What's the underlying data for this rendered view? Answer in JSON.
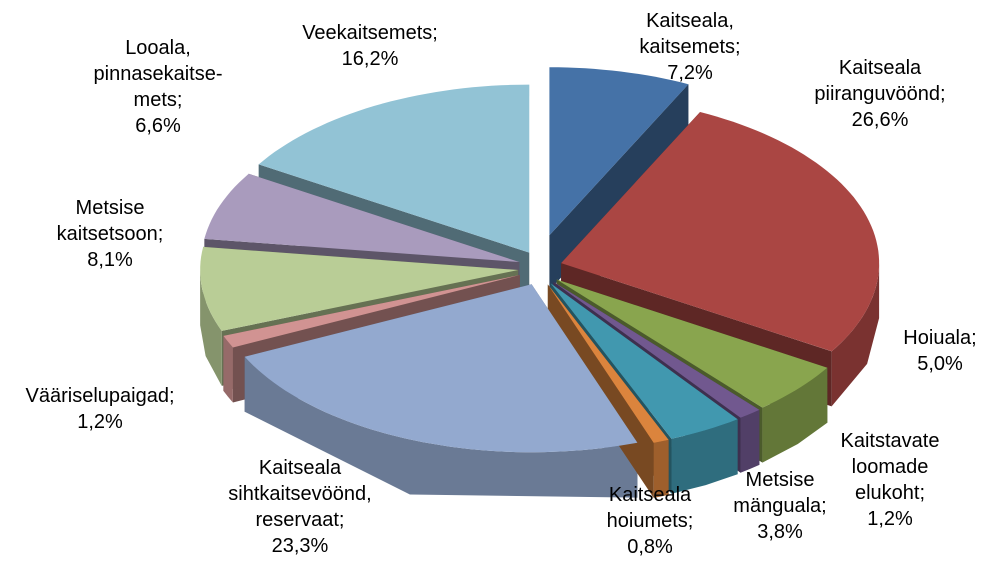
{
  "chart_data": {
    "type": "pie",
    "categories": [
      "Kaitseala,\nkaitsemets;",
      "Kaitseala\npiiranguvöönd;",
      "Hoiuala;",
      "Kaitstavate\nloomade\nelukoht;",
      "Metsise\nmänguala;",
      "Kaitseala\nhoiumets;",
      "Kaitseala\nsihtkaitsevöönd,\nreservaat;",
      "Vääriselupaigad;",
      "Metsise\nkaitsetsoon;",
      "Looala,\npinnasekaitse-\nmets;",
      "Veekaitsemets;"
    ],
    "values": [
      7.2,
      26.6,
      5.0,
      1.2,
      3.8,
      0.8,
      23.3,
      1.2,
      8.1,
      6.6,
      16.2
    ],
    "value_labels": [
      "7,2%",
      "26,6%",
      "5,0%",
      "1,2%",
      "3,8%",
      "0,8%",
      "23,3%",
      "1,2%",
      "8,1%",
      "6,6%",
      "16,2%"
    ],
    "colors": [
      "#4572a7",
      "#aa4643",
      "#89a54e",
      "#71588f",
      "#4198af",
      "#db843d",
      "#93a9cf",
      "#d19392",
      "#b9cd96",
      "#a99bbd",
      "#92c3d5"
    ]
  }
}
